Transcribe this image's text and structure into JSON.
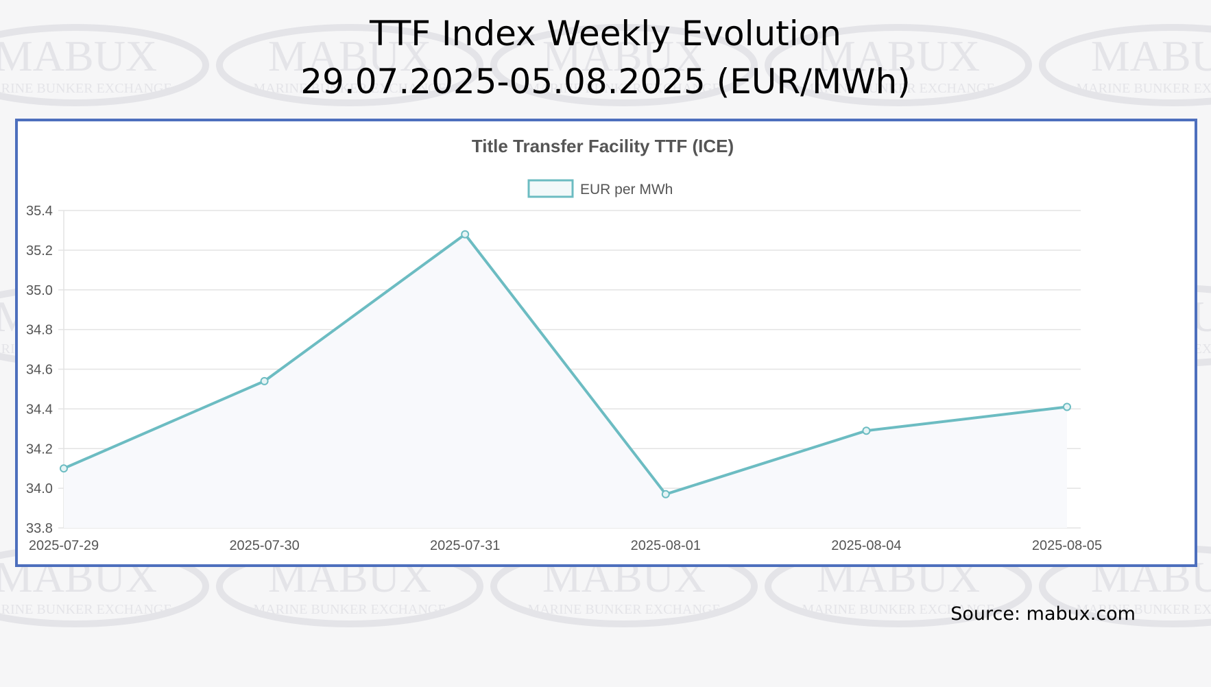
{
  "page": {
    "title_line1": "TTF Index Weekly Evolution",
    "title_line2": "29.07.2025-05.08.2025 (EUR/MWh)",
    "source": "Source: mabux.com",
    "watermark_main": "MABUX",
    "watermark_sub": "MARINE BUNKER EXCHANGE"
  },
  "colors": {
    "series_line": "#6cbcc2",
    "series_fill": "#f8f9fc",
    "frame_border": "#4d6fbd",
    "grid": "#e3e3e3",
    "text": "#555555",
    "watermark": "#e4e4e8"
  },
  "chart_data": {
    "type": "line",
    "title": "Title Transfer Facility TTF (ICE)",
    "xlabel": "",
    "ylabel": "",
    "legend_position": "top-center",
    "grid": true,
    "ylim": [
      33.8,
      35.4
    ],
    "yticks": [
      "35.4",
      "35.2",
      "35.0",
      "34.8",
      "34.6",
      "34.4",
      "34.2",
      "34.0",
      "33.8"
    ],
    "categories": [
      "2025-07-29",
      "2025-07-30",
      "2025-07-31",
      "2025-08-01",
      "2025-08-04",
      "2025-08-05"
    ],
    "series": [
      {
        "name": "EUR per MWh",
        "values": [
          34.1,
          34.54,
          35.28,
          33.97,
          34.29,
          34.41
        ]
      }
    ]
  }
}
